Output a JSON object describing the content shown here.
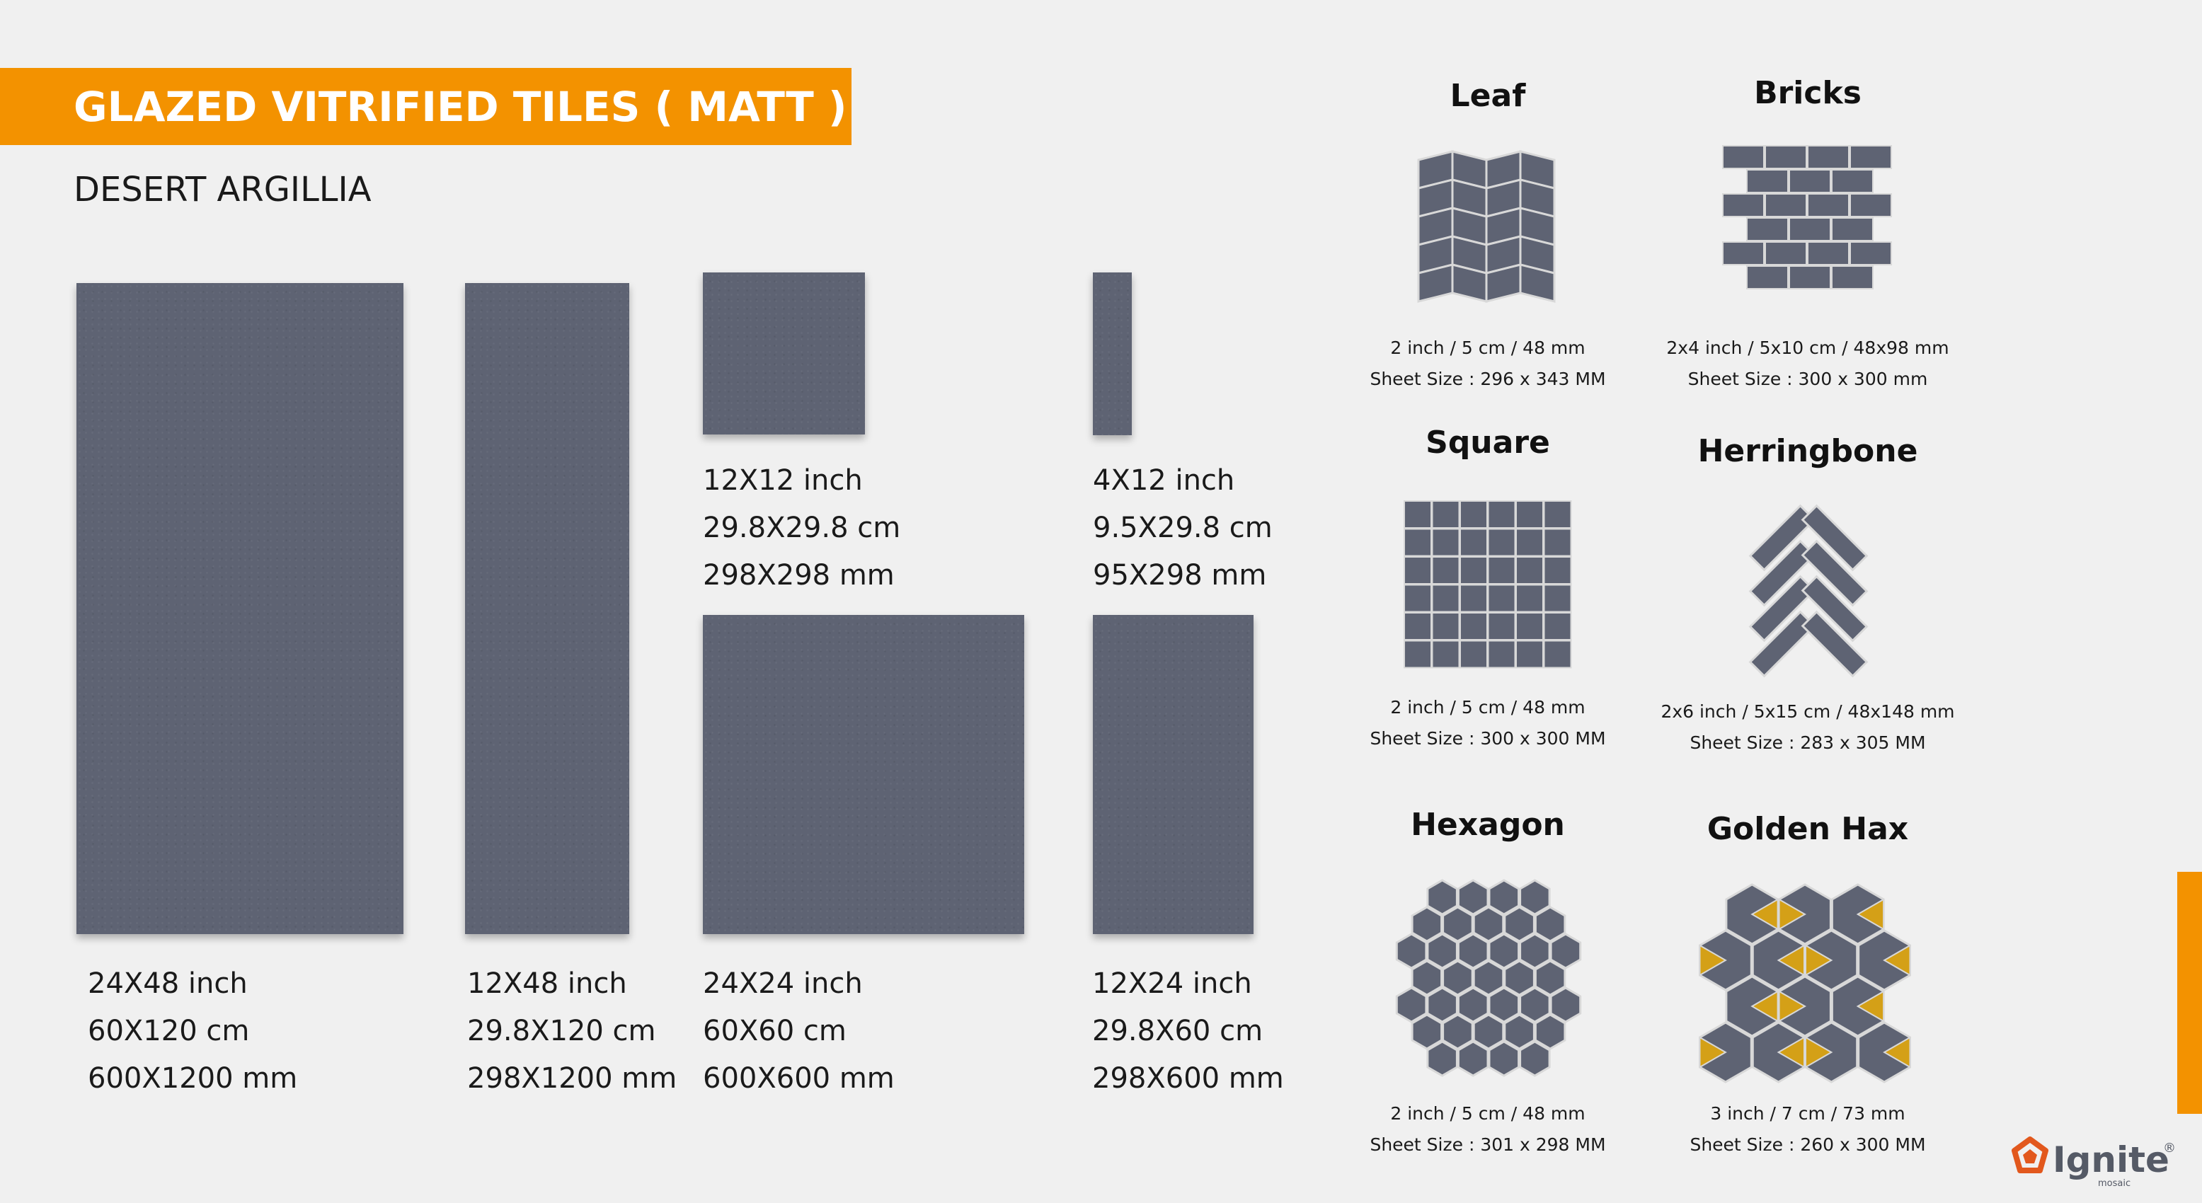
{
  "header": {
    "title": "GLAZED VITRIFIED TILES ( MATT )",
    "subtitle": "DESERT ARGILLIA"
  },
  "colors": {
    "accent": "#f39200",
    "tile": "#5e6373",
    "grout": "#d8d8d8",
    "gold": "#d4a017"
  },
  "tiles": [
    {
      "inch": "24X48 inch",
      "cm": "60X120 cm",
      "mm": "600X1200 mm"
    },
    {
      "inch": "12X48 inch",
      "cm": "29.8X120 cm",
      "mm": "298X1200 mm"
    },
    {
      "inch": "12X12 inch",
      "cm": "29.8X29.8 cm",
      "mm": "298X298 mm"
    },
    {
      "inch": "4X12 inch",
      "cm": "9.5X29.8 cm",
      "mm": "95X298 mm"
    },
    {
      "inch": "24X24 inch",
      "cm": "60X60 cm",
      "mm": "600X600 mm"
    },
    {
      "inch": "12X24 inch",
      "cm": "29.8X60 cm",
      "mm": "298X600 mm"
    }
  ],
  "mosaics": [
    {
      "name": "Leaf",
      "size": "2 inch / 5 cm /  48 mm",
      "sheet": "Sheet Size : 296 x 343 MM"
    },
    {
      "name": "Bricks",
      "size": "2x4 inch / 5x10 cm / 48x98 mm",
      "sheet": "Sheet Size : 300 x 300 mm"
    },
    {
      "name": "Square",
      "size": "2 inch / 5 cm /  48 mm",
      "sheet": "Sheet Size : 300 x 300 MM"
    },
    {
      "name": "Herringbone",
      "size": "2x6 inch / 5x15 cm /  48x148 mm",
      "sheet": "Sheet Size : 283 x 305 MM"
    },
    {
      "name": "Hexagon",
      "size": "2 inch / 5 cm / 48 mm",
      "sheet": "Sheet Size : 301 x 298 MM"
    },
    {
      "name": "Golden Hax",
      "size": "3 inch / 7 cm / 73 mm",
      "sheet": "Sheet Size : 260 x 300 MM"
    }
  ],
  "brand": {
    "logo_text": "Ignite",
    "logo_sub": "mosaic",
    "mark": "®"
  }
}
